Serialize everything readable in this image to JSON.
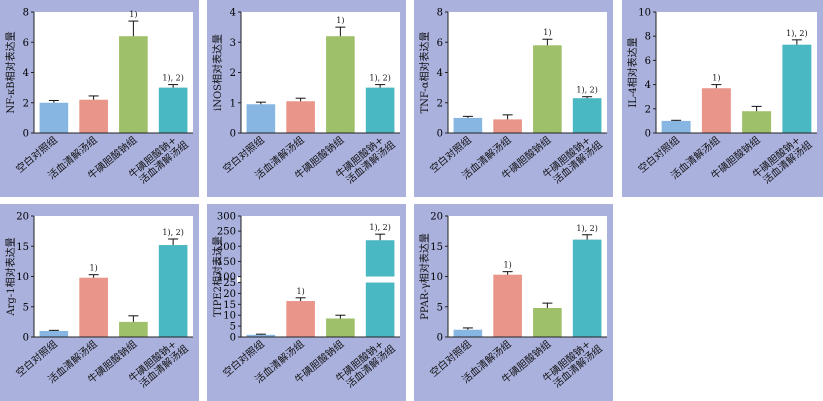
{
  "colors": {
    "panel_bg": "#aab1dd",
    "plot_bg": "#ffffff",
    "bar_blank": "#88b6e3",
    "bar_huoxue": "#e9958a",
    "bar_niuhuang": "#9fc06a",
    "bar_combo": "#4ab8c3",
    "axis": "#222222"
  },
  "categories": [
    "空白对照组",
    "活血清解汤组",
    "牛磺胆酸钠组",
    "牛磺胆酸钠+活血清解汤组"
  ],
  "category_lines": [
    [
      "空白对照组"
    ],
    [
      "活血清解汤组"
    ],
    [
      "牛磺胆酸钠组"
    ],
    [
      "牛磺胆酸钠+",
      "活血清解汤组"
    ]
  ],
  "chart_data": [
    {
      "type": "bar",
      "ylabel": "NF-κB相对表达量",
      "ylim": [
        0,
        8
      ],
      "ticks": [
        0,
        2,
        4,
        6,
        8
      ],
      "values": [
        2.0,
        2.2,
        6.4,
        3.0
      ],
      "errors": [
        0.15,
        0.25,
        1.0,
        0.2
      ],
      "annotations": [
        "",
        "",
        "1)",
        "1), 2)"
      ]
    },
    {
      "type": "bar",
      "ylabel": "iNOS相对表达量",
      "ylim": [
        0,
        4
      ],
      "ticks": [
        0,
        1,
        2,
        3,
        4
      ],
      "values": [
        0.95,
        1.05,
        3.2,
        1.5
      ],
      "errors": [
        0.07,
        0.1,
        0.3,
        0.1
      ],
      "annotations": [
        "",
        "",
        "1)",
        "1), 2)"
      ]
    },
    {
      "type": "bar",
      "ylabel": "TNF-α相对表达量",
      "ylim": [
        0,
        8
      ],
      "ticks": [
        0,
        2,
        4,
        6,
        8
      ],
      "values": [
        1.0,
        0.9,
        5.8,
        2.3
      ],
      "errors": [
        0.1,
        0.3,
        0.4,
        0.1
      ],
      "annotations": [
        "",
        "",
        "1)",
        "1), 2)"
      ]
    },
    {
      "type": "bar",
      "ylabel": "IL-4相对表达量",
      "ylim": [
        0,
        10
      ],
      "ticks": [
        0,
        2,
        4,
        6,
        8,
        10
      ],
      "values": [
        1.0,
        3.7,
        1.8,
        7.3
      ],
      "errors": [
        0.05,
        0.3,
        0.4,
        0.4
      ],
      "annotations": [
        "",
        "1)",
        "",
        "1), 2)"
      ]
    },
    {
      "type": "bar",
      "ylabel": "Arg-1相对表达量",
      "ylim": [
        0,
        20
      ],
      "ticks": [
        0,
        5,
        10,
        15,
        20
      ],
      "values": [
        1.0,
        9.8,
        2.5,
        15.2
      ],
      "errors": [
        0.1,
        0.5,
        1.0,
        1.0
      ],
      "annotations": [
        "",
        "1)",
        "",
        "1), 2)"
      ]
    },
    {
      "type": "bar",
      "ylabel": "TIPE2相对表达量",
      "ylim": [
        0,
        300
      ],
      "axis_break": [
        25,
        100
      ],
      "ticks": [
        0,
        5,
        10,
        15,
        20,
        25,
        100,
        150,
        200,
        250,
        300
      ],
      "values": [
        1.0,
        16.5,
        8.5,
        220
      ],
      "errors": [
        0.3,
        1.5,
        1.5,
        20
      ],
      "annotations": [
        "",
        "1)",
        "",
        "1), 2)"
      ]
    },
    {
      "type": "bar",
      "ylabel": "PPAR-γ相对表达量",
      "ylim": [
        0,
        20
      ],
      "ticks": [
        0,
        5,
        10,
        15,
        20
      ],
      "values": [
        1.2,
        10.3,
        4.8,
        16.1
      ],
      "errors": [
        0.3,
        0.5,
        0.8,
        0.8
      ],
      "annotations": [
        "",
        "1)",
        "",
        "1), 2)"
      ]
    }
  ]
}
